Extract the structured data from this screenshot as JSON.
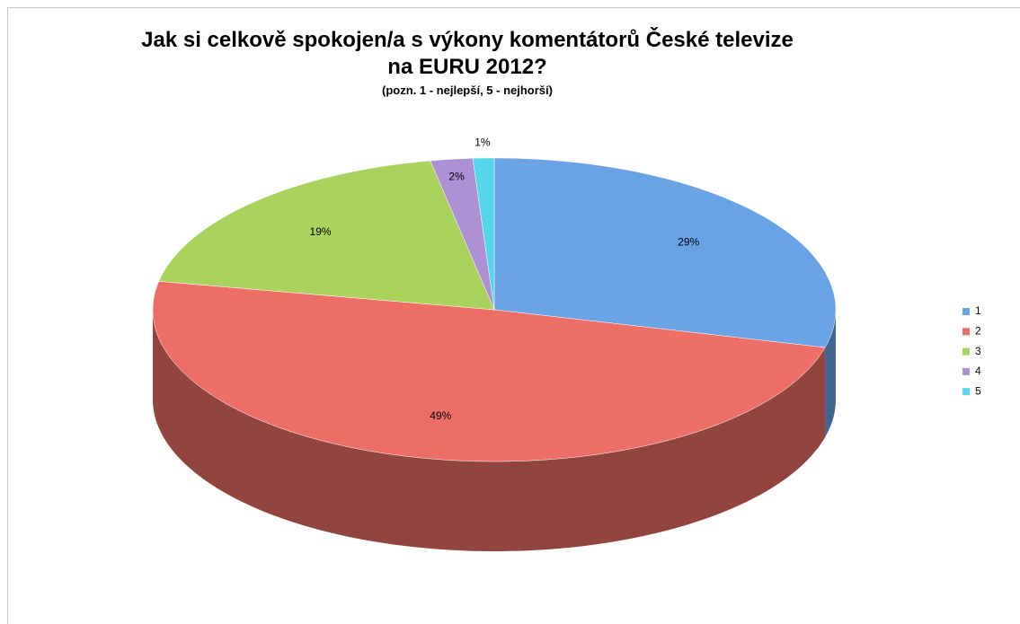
{
  "chart_data": {
    "type": "pie",
    "title": "Jak si celkově spokojen/a s výkony komentátorů České televize na EURU 2012?",
    "subtitle": "(pozn. 1 - nejlepší, 5 - nejhorší)",
    "categories": [
      "1",
      "2",
      "3",
      "4",
      "5"
    ],
    "values": [
      29,
      49,
      19,
      2,
      1
    ],
    "value_labels": [
      "29%",
      "49%",
      "19%",
      "2%",
      "1%"
    ],
    "colors": [
      "#6aa2e6",
      "#ec6e66",
      "#aad35e",
      "#ad8fd4",
      "#55d6ea"
    ],
    "legend": "right"
  }
}
